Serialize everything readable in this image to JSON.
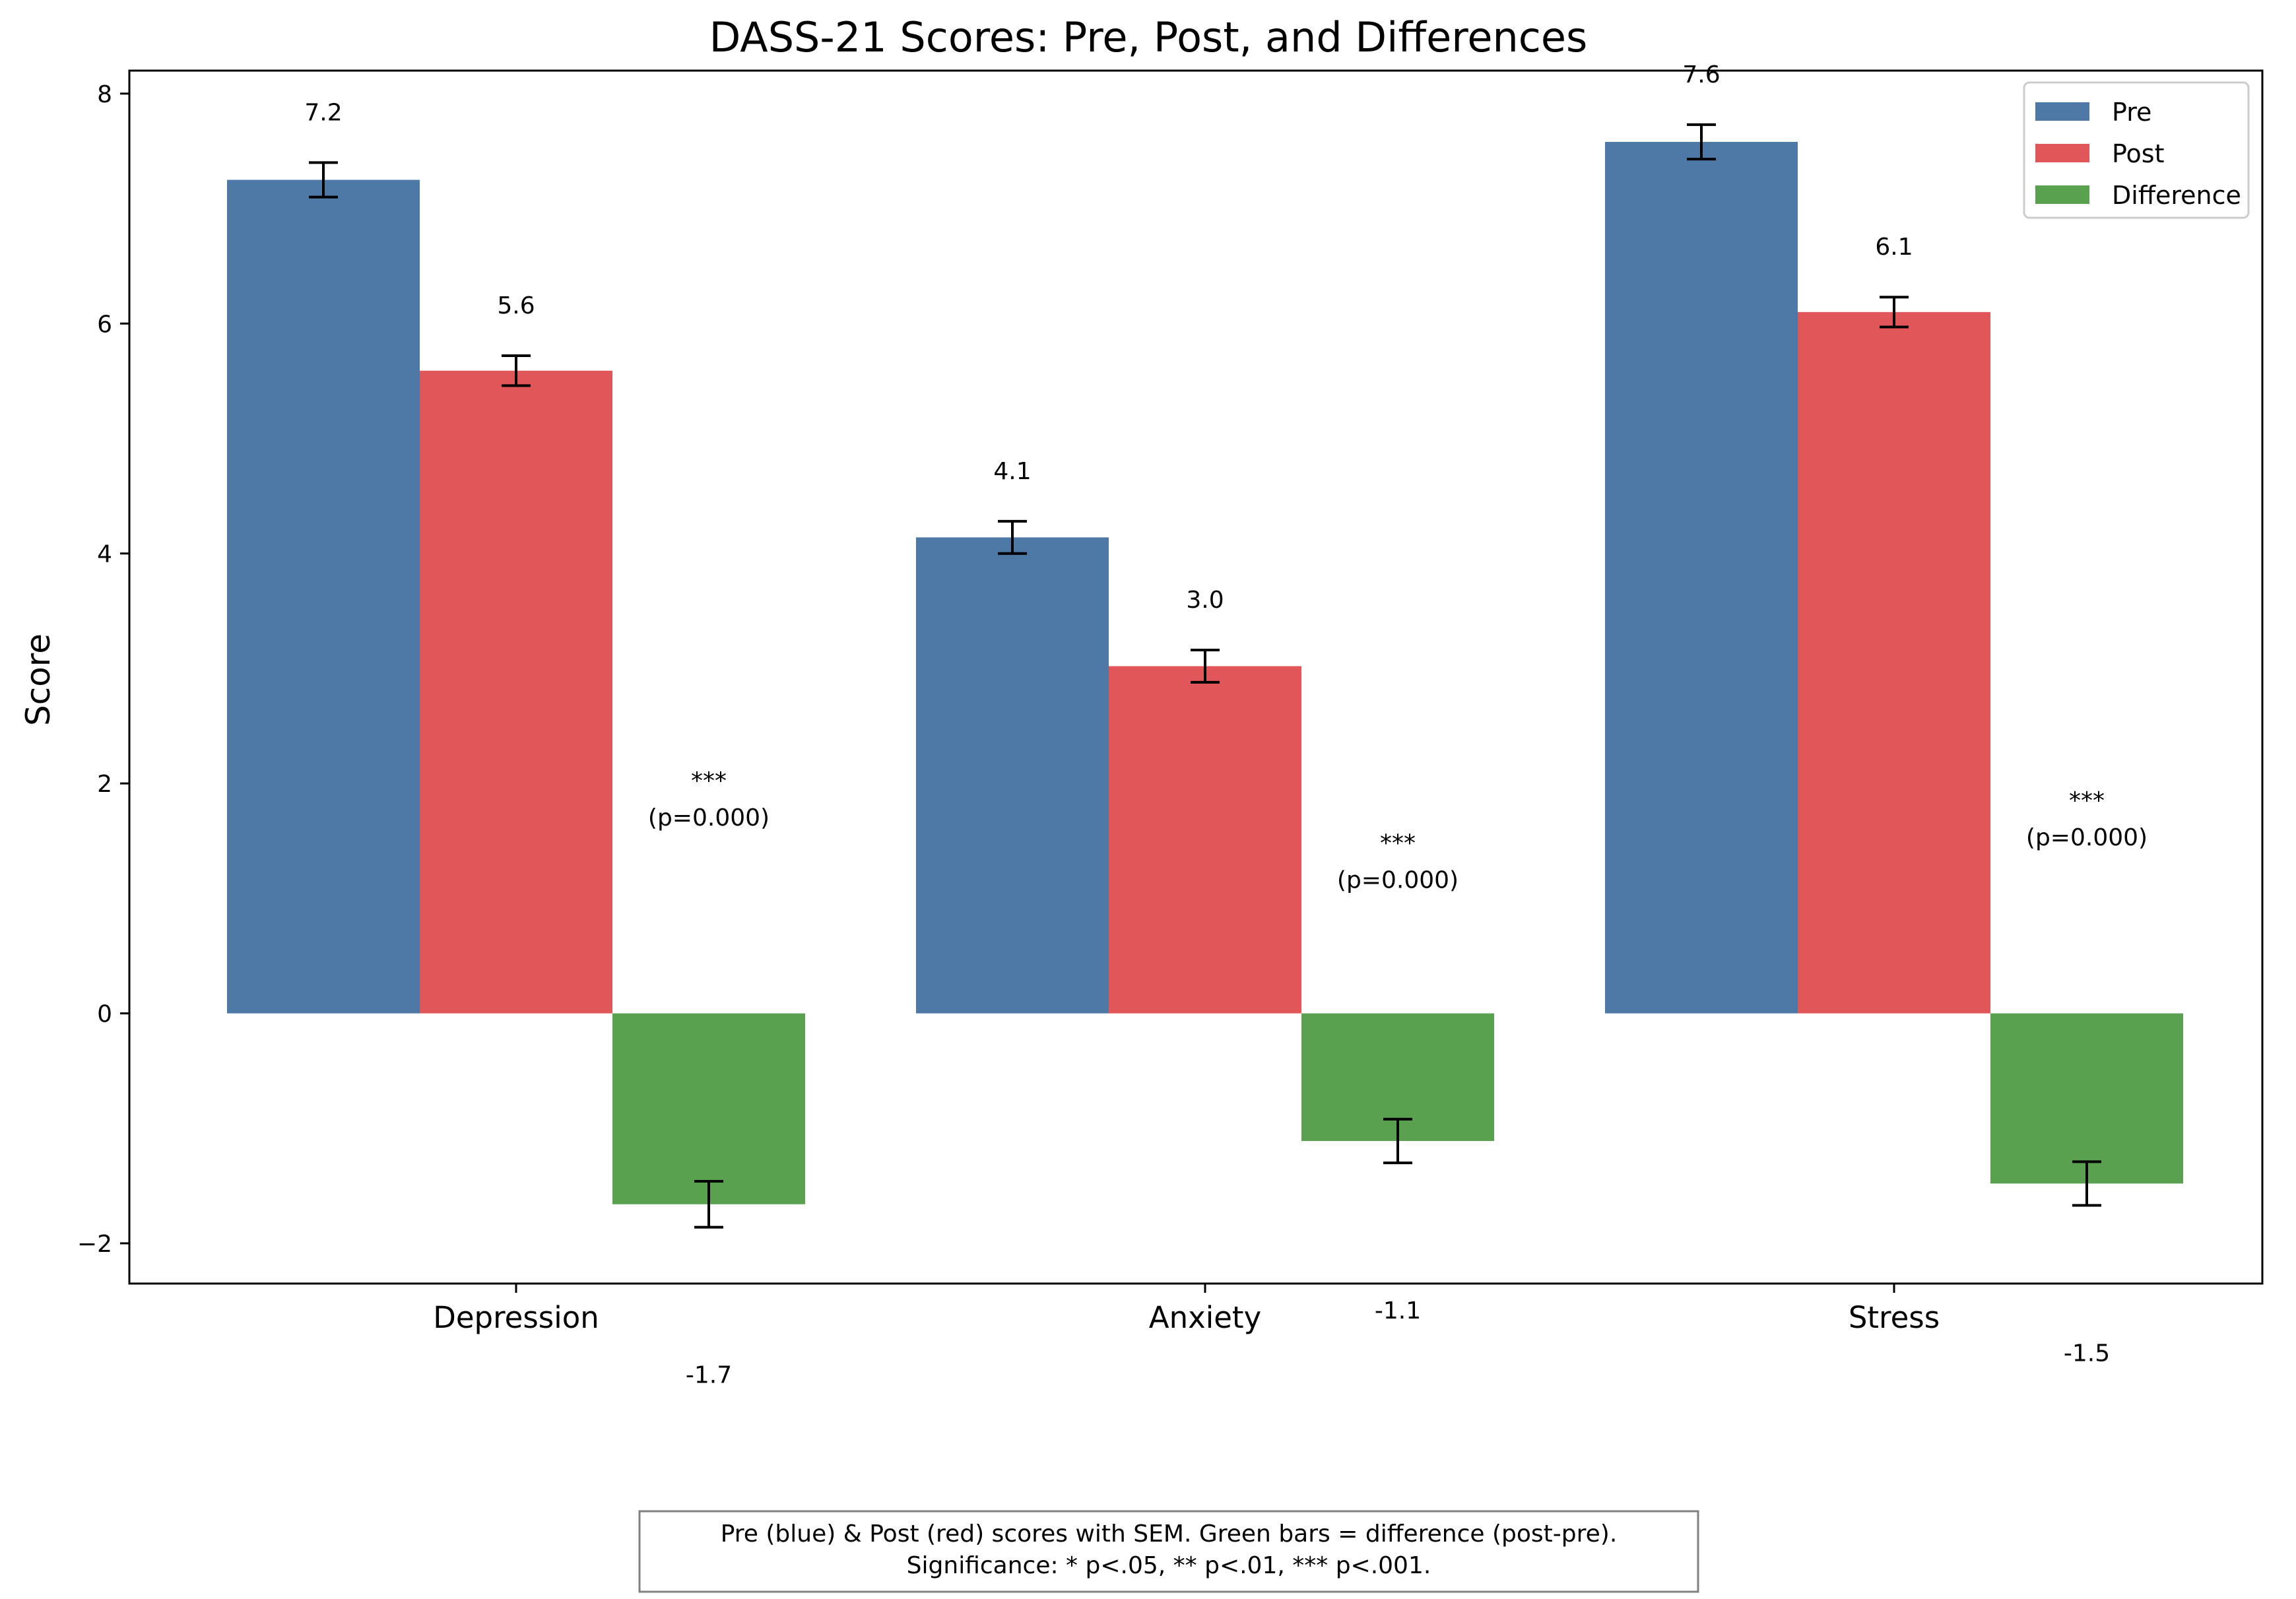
{
  "chart_data": {
    "type": "bar",
    "title": "DASS-21 Scores: Pre, Post, and Differences",
    "xlabel": "",
    "ylabel": "Score",
    "ylim": [
      -2.35,
      8.2
    ],
    "yticks": [
      -2,
      0,
      2,
      4,
      6,
      8
    ],
    "categories": [
      "Depression",
      "Anxiety",
      "Stress"
    ],
    "series": [
      {
        "name": "Pre",
        "color": "#4e79a7",
        "values": [
          7.25,
          4.14,
          7.58
        ],
        "sem": [
          0.15,
          0.14,
          0.15
        ],
        "labels": [
          "7.2",
          "4.1",
          "7.6"
        ]
      },
      {
        "name": "Post",
        "color": "#e15759",
        "values": [
          5.59,
          3.02,
          6.1
        ],
        "sem": [
          0.13,
          0.14,
          0.13
        ],
        "labels": [
          "5.6",
          "3.0",
          "6.1"
        ]
      },
      {
        "name": "Difference",
        "color": "#59a14f",
        "values": [
          -1.66,
          -1.11,
          -1.48
        ],
        "sem": [
          0.2,
          0.19,
          0.19
        ],
        "labels": [
          "-1.7",
          "-1.1",
          "-1.5"
        ]
      }
    ],
    "significance": [
      {
        "stars": "***",
        "p": "(p=0.000)"
      },
      {
        "stars": "***",
        "p": "(p=0.000)"
      },
      {
        "stars": "***",
        "p": "(p=0.000)"
      }
    ],
    "legend": {
      "position": "top-right"
    },
    "grid": false,
    "note": [
      "Pre (blue) & Post (red) scores with SEM. Green bars = difference (post-pre).",
      "Significance: * p<.05, ** p<.01, *** p<.001."
    ]
  }
}
